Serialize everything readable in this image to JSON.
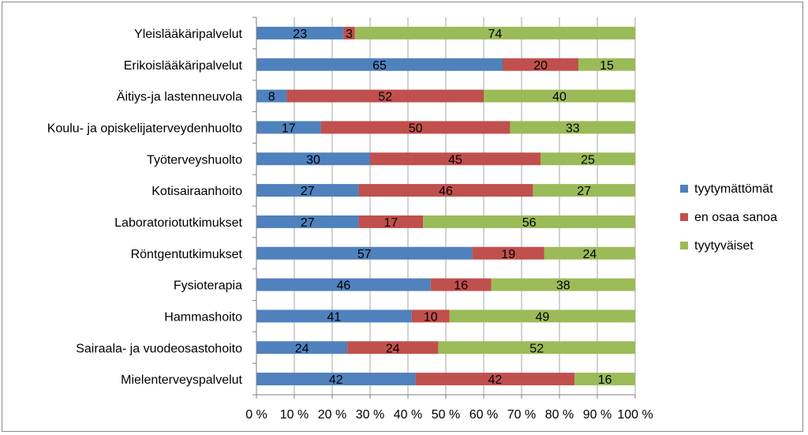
{
  "chart_data": {
    "type": "bar",
    "orientation": "horizontal",
    "stacked": true,
    "categories": [
      "Yleislääkäripalvelut",
      "Erikoislääkäripalvelut",
      "Äitiys-ja lastenneuvola",
      "Koulu- ja opiskelijaterveydenhuolto",
      "Työterveyshuolto",
      "Kotisairaanhoito",
      "Laboratoriotutkimukset",
      "Röntgentutkimukset",
      "Fysioterapia",
      "Hammashoito",
      "Sairaala- ja vuodeosastohoito",
      "Mielenterveyspalvelut"
    ],
    "series": [
      {
        "name": "tyytymättömät",
        "color": "#4f81bd",
        "values": [
          23,
          65,
          8,
          17,
          30,
          27,
          27,
          57,
          46,
          41,
          24,
          42
        ]
      },
      {
        "name": "en osaa sanoa",
        "color": "#c0504d",
        "values": [
          3,
          20,
          52,
          50,
          45,
          46,
          17,
          19,
          16,
          10,
          24,
          42
        ]
      },
      {
        "name": "tyytyväiset",
        "color": "#9bbb59",
        "values": [
          74,
          15,
          40,
          33,
          25,
          27,
          56,
          24,
          38,
          49,
          52,
          16
        ]
      }
    ],
    "xlim": [
      0,
      100
    ],
    "x_ticks": [
      "0 %",
      "10 %",
      "20 %",
      "30 %",
      "40 %",
      "50 %",
      "60 %",
      "70 %",
      "80 %",
      "90 %",
      "100 %"
    ],
    "grid": true,
    "legend_position": "right"
  }
}
